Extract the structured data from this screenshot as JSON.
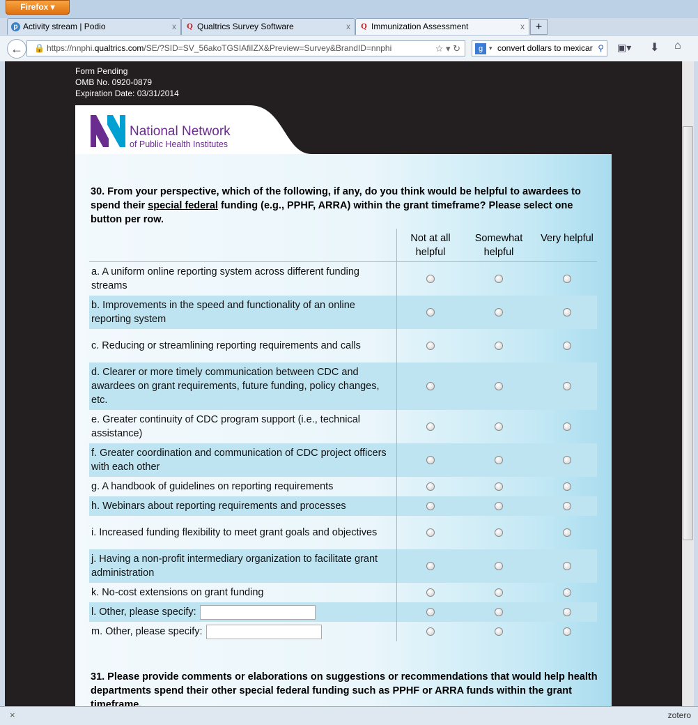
{
  "browser": {
    "menu_label": "Firefox",
    "tabs": [
      {
        "label": "Activity stream | Podio",
        "icon": "podio-icon"
      },
      {
        "label": "Qualtrics Survey Software",
        "icon": "qualtrics-icon"
      },
      {
        "label": "Immunization Assessment",
        "icon": "qualtrics-icon",
        "active": true
      }
    ],
    "close_glyph": "x",
    "new_tab_glyph": "+",
    "url_prefix": "https://nnphi.",
    "url_domain": "qualtrics.com",
    "url_rest": "/SE/?SID=SV_56akoTGSIAfiIZX&Preview=Survey&BrandID=nnphi",
    "search_value": "convert dollars to mexicar",
    "status_close": "×",
    "status_right": "zotero"
  },
  "form_header": {
    "line1": "Form Pending",
    "line2": "OMB No. 0920-0879",
    "line3": "Expiration Date: 03/31/2014"
  },
  "logo": {
    "line1": "National Network",
    "line2": "of Public Health Institutes",
    "color_purple": "#6a2c8e",
    "color_blue": "#00a0d2"
  },
  "q30": {
    "text_before": "30. From your perspective, which of the following, if any, do you think would be helpful to awardees to spend their ",
    "underlined": "special federal",
    "text_after": " funding (e.g., PPHF, ARRA) within the grant timeframe? Please select one button per row.",
    "columns": [
      "Not at all helpful",
      "Somewhat helpful",
      "Very helpful"
    ],
    "rows": [
      {
        "label": "a. A uniform online reporting system across different funding streams"
      },
      {
        "label": "b. Improvements in the speed and functionality of an online reporting system"
      },
      {
        "label": "c. Reducing or streamlining reporting requirements and calls"
      },
      {
        "label": "d. Clearer or more timely communication between CDC and awardees on grant requirements, future funding, policy changes, etc."
      },
      {
        "label": "e. Greater continuity of CDC program support (i.e., technical assistance)"
      },
      {
        "label": "f. Greater coordination and communication of CDC project officers with each other"
      },
      {
        "label": "g. A handbook of guidelines on reporting requirements"
      },
      {
        "label": "h. Webinars about reporting requirements and processes"
      },
      {
        "label": "i. Increased funding flexibility to meet grant goals and objectives"
      },
      {
        "label": "j. Having a non-profit intermediary organization to facilitate grant administration"
      },
      {
        "label": "k. No-cost extensions on grant funding"
      },
      {
        "label": "l. Other, please specify:",
        "input_value": ""
      },
      {
        "label": "m. Other, please specify:",
        "input_value": ""
      }
    ]
  },
  "q31": {
    "text": "31. Please provide comments or elaborations on suggestions or recommendations that would help health departments spend their other special federal funding such as PPHF or ARRA funds within the grant timeframe."
  }
}
